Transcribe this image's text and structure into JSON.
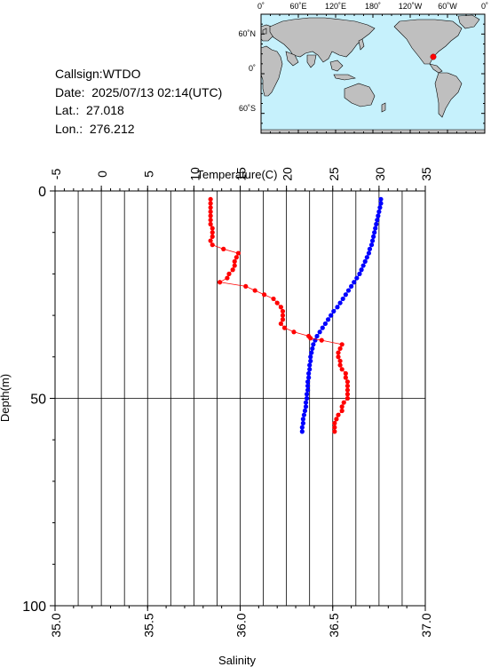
{
  "info": {
    "callsign": "Callsign:WTDO",
    "date": "Date:  2025/07/13 02:14(UTC)",
    "lat": "Lat.:  27.018",
    "lon": "Lon.:  276.212"
  },
  "map": {
    "top_labels": [
      "0˚",
      "60˚E",
      "120˚E",
      "180˚",
      "120˚W",
      "60˚W",
      "0˚"
    ],
    "left_labels": [
      "60˚N",
      "0˚",
      "60˚S"
    ],
    "ocean_color": "#c6f1fc",
    "land_color": "#bfbfbf",
    "marker_color": "#ff0000"
  },
  "chart_data": {
    "type": "line",
    "top_axis": {
      "label": "Temperature(C)",
      "range": [
        -5,
        35
      ],
      "ticks": [
        -5,
        0,
        5,
        10,
        15,
        20,
        25,
        30,
        35
      ]
    },
    "bottom_axis": {
      "label": "Salinity",
      "range": [
        35.0,
        37.0
      ],
      "ticks": [
        "35.0",
        "35.5",
        "36.0",
        "36.5",
        "37.0"
      ]
    },
    "y_axis": {
      "label": "Depth(m)",
      "range": [
        0,
        100
      ],
      "ticks": [
        0,
        50,
        100
      ],
      "inverted": true
    },
    "grid": true,
    "series": [
      {
        "quantity": "temperature",
        "color": "#0000ff",
        "depth": [
          2,
          3,
          4,
          5,
          6,
          7,
          8,
          9,
          10,
          11,
          12,
          13,
          14,
          15,
          16,
          17,
          18,
          19,
          20,
          21,
          22,
          23,
          24,
          25,
          26,
          27,
          28,
          29,
          30,
          31,
          32,
          33,
          34,
          35,
          36,
          37,
          38,
          39,
          40,
          41,
          42,
          43,
          44,
          45,
          46,
          47,
          48,
          49,
          50,
          51,
          52,
          53,
          54,
          55,
          56,
          57,
          58
        ],
        "values": [
          30.2,
          30.2,
          30.1,
          30.0,
          29.9,
          29.8,
          29.7,
          29.6,
          29.5,
          29.4,
          29.3,
          29.2,
          29.0,
          28.9,
          28.7,
          28.5,
          28.3,
          28.1,
          27.9,
          27.6,
          27.3,
          27.0,
          26.7,
          26.4,
          26.1,
          25.8,
          25.5,
          25.1,
          24.8,
          24.5,
          24.2,
          23.9,
          23.6,
          23.3,
          23.1,
          22.9,
          22.8,
          22.7,
          22.6,
          22.6,
          22.5,
          22.5,
          22.4,
          22.4,
          22.3,
          22.3,
          22.3,
          22.2,
          22.2,
          22.1,
          22.1,
          22.0,
          21.9,
          21.8,
          21.8,
          21.7,
          21.7
        ]
      },
      {
        "quantity": "salinity",
        "color": "#ff0000",
        "depth": [
          2,
          3,
          4,
          5,
          6,
          7,
          8,
          9,
          10,
          11,
          12,
          13,
          14,
          15,
          16,
          17,
          18,
          19,
          20,
          21,
          22,
          23,
          24,
          25,
          26,
          27,
          28,
          29,
          30,
          31,
          32,
          33,
          34,
          35,
          35.5,
          36,
          37,
          38,
          39,
          40,
          41,
          42,
          43,
          44,
          45,
          46,
          47,
          48,
          49,
          50,
          51,
          52,
          53,
          54,
          55,
          56,
          57,
          58
        ],
        "values": [
          35.84,
          35.84,
          35.84,
          35.84,
          35.84,
          35.84,
          35.84,
          35.85,
          35.85,
          35.85,
          35.84,
          35.85,
          35.91,
          35.99,
          35.98,
          35.97,
          35.97,
          35.96,
          35.94,
          35.93,
          35.89,
          36.03,
          36.08,
          36.13,
          36.18,
          36.2,
          36.22,
          36.23,
          36.23,
          36.23,
          36.22,
          36.24,
          36.29,
          36.37,
          36.38,
          36.44,
          36.55,
          36.54,
          36.53,
          36.53,
          36.54,
          36.54,
          36.55,
          36.57,
          36.57,
          36.58,
          36.58,
          36.58,
          36.58,
          36.58,
          36.56,
          36.55,
          36.55,
          36.53,
          36.52,
          36.51,
          36.51,
          36.51
        ]
      }
    ]
  }
}
